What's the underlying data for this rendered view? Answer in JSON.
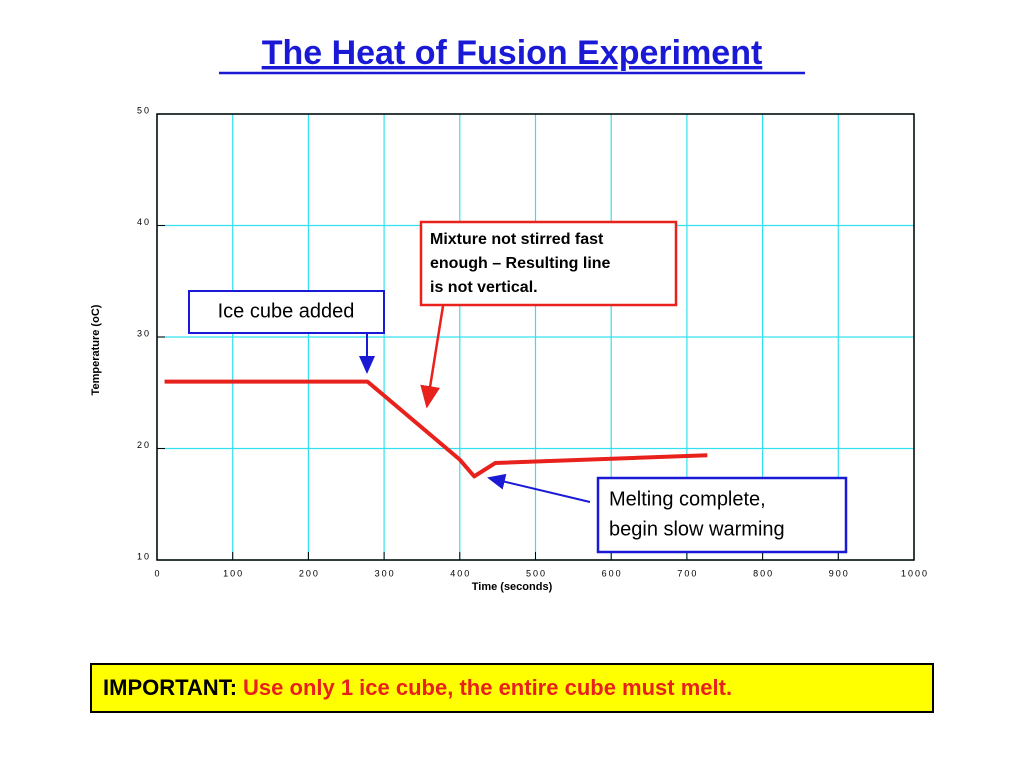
{
  "chart_data": {
    "type": "line",
    "title": "The Heat of Fusion Experiment",
    "x_label": "Time (seconds)",
    "y_label": "Temperature (oC)",
    "x": [
      10,
      278,
      400,
      419,
      447,
      727
    ],
    "values": [
      26,
      26,
      19,
      17.5,
      18.7,
      19.4
    ],
    "color": "#e8211c",
    "xlim": [
      0,
      1000
    ],
    "xticks": [
      0,
      100,
      200,
      300,
      400,
      500,
      600,
      700,
      800,
      900,
      1000
    ],
    "ylim": [
      10,
      50
    ],
    "yticks": [
      10,
      20,
      30,
      40,
      50
    ],
    "grid": true,
    "grid_color": "#33e0f0",
    "annotations": [
      {
        "lines": [
          "Ice cube added"
        ],
        "color": "#1a1ad6"
      },
      {
        "lines": [
          "Mixture not stirred fast",
          "enough – Resulting line",
          "is not vertical."
        ],
        "color": "#e8211c"
      },
      {
        "lines": [
          "Melting complete,",
          "begin slow warming"
        ],
        "color": "#1a1ad6"
      }
    ]
  },
  "note": {
    "label": "IMPORTANT:",
    "text": "Use only 1 ice cube, the entire cube must melt."
  }
}
